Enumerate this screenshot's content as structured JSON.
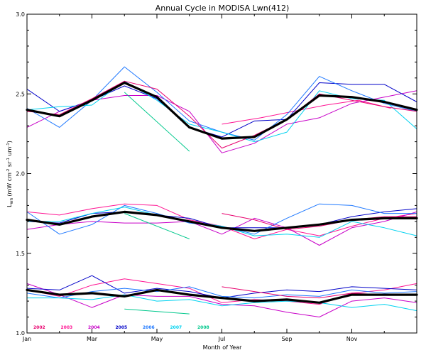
{
  "chart_data": {
    "type": "line",
    "title": "Annual Cycle in MODISA Lwn(412)",
    "xlabel": "Month of Year",
    "ylabel": "Lwn (mW cm⁻² sr⁻¹ um⁻¹)",
    "ylabel_parts": {
      "main": "L",
      "main_sub": "wn",
      "units": "(mW cm",
      "exp1": "-2",
      "mid1": " sr",
      "exp2": "-1",
      "mid2": " um",
      "exp3": "-1",
      "close": ")"
    },
    "xlim": [
      1,
      13
    ],
    "ylim": [
      1.0,
      3.0
    ],
    "x_ticks": [
      {
        "value": 1,
        "label": "Jan"
      },
      {
        "value": 3,
        "label": "Mar"
      },
      {
        "value": 5,
        "label": "May"
      },
      {
        "value": 7,
        "label": "Jul"
      },
      {
        "value": 9,
        "label": "Sep"
      },
      {
        "value": 11,
        "label": "Nov"
      }
    ],
    "y_ticks": [
      {
        "value": 1.0,
        "label": "1.0"
      },
      {
        "value": 1.5,
        "label": "1.5"
      },
      {
        "value": 2.0,
        "label": "2.0"
      },
      {
        "value": 2.5,
        "label": "2.5"
      },
      {
        "value": 3.0,
        "label": "3.0"
      }
    ],
    "grid": false,
    "legend_placement": "bottom-left inside plot",
    "legend": [
      {
        "label": "2002",
        "color": "#e8006e"
      },
      {
        "label": "2003",
        "color": "#ff1493"
      },
      {
        "label": "2004",
        "color": "#c800c8"
      },
      {
        "label": "2005",
        "color": "#0000c8"
      },
      {
        "label": "2006",
        "color": "#1e78ff"
      },
      {
        "label": "2007",
        "color": "#00d2f0"
      },
      {
        "label": "2008",
        "color": "#00c88c"
      }
    ],
    "mean_line": {
      "color": "#000000"
    },
    "panels": [
      {
        "id": "upper",
        "series": [
          {
            "color": "#ff1493",
            "x": [
              7,
              8.2,
              9.2,
              10.2,
              11.2,
              12.2
            ],
            "y": [
              2.31,
              2.35,
              2.39,
              2.43,
              2.46,
              2.41
            ]
          },
          {
            "color": "#c800c8",
            "x": [
              1,
              2,
              3,
              4,
              5,
              6,
              7,
              8,
              9,
              10,
              11,
              12,
              13
            ],
            "y": [
              2.29,
              2.39,
              2.46,
              2.49,
              2.49,
              2.39,
              2.13,
              2.19,
              2.31,
              2.35,
              2.44,
              2.48,
              2.52
            ]
          },
          {
            "color": "#0000c8",
            "x": [
              1,
              2,
              3,
              4,
              5,
              6,
              7,
              8,
              9,
              10,
              11,
              12,
              13
            ],
            "y": [
              2.53,
              2.39,
              2.46,
              2.55,
              2.47,
              2.29,
              2.23,
              2.33,
              2.34,
              2.57,
              2.56,
              2.56,
              2.45
            ]
          },
          {
            "color": "#1e78ff",
            "x": [
              1,
              2,
              3,
              4,
              5,
              6,
              7,
              8,
              9,
              10,
              11,
              12,
              13
            ],
            "y": [
              2.41,
              2.29,
              2.46,
              2.67,
              2.51,
              2.33,
              2.26,
              2.21,
              2.37,
              2.61,
              2.52,
              2.44,
              2.39
            ]
          },
          {
            "color": "#00d2f0",
            "x": [
              1,
              2,
              3,
              4,
              5,
              6,
              7,
              8,
              9,
              10,
              11,
              12,
              13
            ],
            "y": [
              2.4,
              2.42,
              2.43,
              2.58,
              2.46,
              2.31,
              2.26,
              2.2,
              2.26,
              2.52,
              2.47,
              2.46,
              2.28
            ]
          },
          {
            "color": "#00c88c",
            "x": [
              4,
              6
            ],
            "y": [
              2.51,
              2.14
            ]
          },
          {
            "color": "#e8006e",
            "x": [
              1,
              2,
              3,
              4,
              5,
              6,
              7,
              8,
              9,
              10,
              11,
              12,
              13
            ],
            "y": [
              2.39,
              2.37,
              2.47,
              2.58,
              2.53,
              2.36,
              2.16,
              2.24,
              2.34,
              2.5,
              2.46,
              2.42,
              2.39
            ]
          }
        ],
        "mean": {
          "x": [
            1,
            2,
            3,
            4,
            5,
            6,
            7,
            8,
            9,
            10,
            11,
            12,
            13
          ],
          "y": [
            2.4,
            2.36,
            2.46,
            2.57,
            2.48,
            2.29,
            2.22,
            2.23,
            2.34,
            2.49,
            2.48,
            2.45,
            2.4
          ]
        }
      },
      {
        "id": "middle",
        "series": [
          {
            "color": "#ff1493",
            "x": [
              1,
              2,
              3,
              4,
              5,
              6,
              7,
              8,
              9,
              10,
              11,
              12,
              13
            ],
            "y": [
              1.76,
              1.74,
              1.78,
              1.81,
              1.8,
              1.71,
              1.67,
              1.59,
              1.65,
              1.61,
              1.67,
              1.72,
              1.75
            ]
          },
          {
            "color": "#c800c8",
            "x": [
              1,
              2,
              3,
              4,
              5,
              6,
              7,
              8,
              9,
              10,
              11,
              12,
              13
            ],
            "y": [
              1.65,
              1.68,
              1.7,
              1.69,
              1.69,
              1.7,
              1.62,
              1.72,
              1.66,
              1.55,
              1.66,
              1.7,
              1.76
            ]
          },
          {
            "color": "#0000c8",
            "x": [
              1,
              2,
              3,
              4,
              5,
              6,
              7,
              8,
              9,
              10,
              11,
              12,
              13
            ],
            "y": [
              1.7,
              1.69,
              1.75,
              1.76,
              1.74,
              1.72,
              1.66,
              1.66,
              1.66,
              1.68,
              1.73,
              1.76,
              1.78
            ]
          },
          {
            "color": "#1e78ff",
            "x": [
              1,
              2,
              3,
              4,
              5,
              6,
              7,
              8,
              9,
              10,
              11,
              12,
              13
            ],
            "y": [
              1.76,
              1.62,
              1.68,
              1.8,
              1.75,
              1.69,
              1.67,
              1.62,
              1.72,
              1.81,
              1.8,
              1.75,
              1.75
            ]
          },
          {
            "color": "#00d2f0",
            "x": [
              1,
              2,
              3,
              4,
              5,
              6,
              7,
              8,
              9,
              10,
              11,
              12,
              13
            ],
            "y": [
              1.7,
              1.7,
              1.75,
              1.79,
              1.74,
              1.7,
              1.67,
              1.61,
              1.62,
              1.6,
              1.7,
              1.66,
              1.61
            ]
          },
          {
            "color": "#00c88c",
            "x": [
              4,
              6
            ],
            "y": [
              1.75,
              1.59
            ]
          },
          {
            "color": "#e8006e",
            "x": [
              7,
              8,
              9,
              10,
              11,
              12,
              13
            ],
            "y": [
              1.75,
              1.71,
              1.65,
              1.67,
              1.71,
              1.73,
              1.73
            ]
          }
        ],
        "mean": {
          "x": [
            1,
            2,
            3,
            4,
            5,
            6,
            7,
            8,
            9,
            10,
            11,
            12,
            13
          ],
          "y": [
            1.71,
            1.68,
            1.73,
            1.76,
            1.74,
            1.7,
            1.66,
            1.64,
            1.66,
            1.68,
            1.71,
            1.72,
            1.72
          ]
        }
      },
      {
        "id": "lower",
        "series": [
          {
            "color": "#ff1493",
            "x": [
              1,
              2,
              3,
              4,
              5,
              6,
              7,
              8,
              9,
              10,
              11,
              12,
              13
            ],
            "y": [
              1.27,
              1.23,
              1.3,
              1.34,
              1.31,
              1.28,
              1.19,
              1.21,
              1.2,
              1.18,
              1.25,
              1.27,
              1.31
            ]
          },
          {
            "color": "#c800c8",
            "x": [
              1,
              2,
              3,
              4,
              5,
              6,
              7,
              8,
              9,
              10,
              11,
              12,
              13
            ],
            "y": [
              1.31,
              1.24,
              1.16,
              1.24,
              1.23,
              1.23,
              1.18,
              1.17,
              1.13,
              1.1,
              1.2,
              1.22,
              1.19
            ]
          },
          {
            "color": "#0000c8",
            "x": [
              1,
              2,
              3,
              4,
              5,
              6,
              7,
              8,
              9,
              10,
              11,
              12,
              13
            ],
            "y": [
              1.28,
              1.27,
              1.36,
              1.25,
              1.28,
              1.26,
              1.22,
              1.25,
              1.27,
              1.26,
              1.29,
              1.28,
              1.27
            ]
          },
          {
            "color": "#1e78ff",
            "x": [
              1,
              2,
              3,
              4,
              5,
              6,
              7,
              8,
              9,
              10,
              11,
              12,
              13
            ],
            "y": [
              1.25,
              1.22,
              1.26,
              1.28,
              1.26,
              1.29,
              1.23,
              1.22,
              1.24,
              1.23,
              1.27,
              1.25,
              1.26
            ]
          },
          {
            "color": "#00d2f0",
            "x": [
              1,
              2,
              3,
              4,
              5,
              6,
              7,
              8,
              9,
              10,
              11,
              12,
              13
            ],
            "y": [
              1.22,
              1.22,
              1.21,
              1.24,
              1.2,
              1.21,
              1.17,
              1.19,
              1.2,
              1.19,
              1.16,
              1.18,
              1.14
            ]
          },
          {
            "color": "#00c88c",
            "x": [
              4,
              6
            ],
            "y": [
              1.15,
              1.12
            ]
          },
          {
            "color": "#e8006e",
            "x": [
              7,
              8,
              9,
              10,
              11,
              12,
              13
            ],
            "y": [
              1.29,
              1.26,
              1.23,
              1.22,
              1.25,
              1.24,
              1.24
            ]
          }
        ],
        "mean": {
          "x": [
            1,
            2,
            3,
            4,
            5,
            6,
            7,
            8,
            9,
            10,
            11,
            12,
            13
          ],
          "y": [
            1.27,
            1.24,
            1.25,
            1.23,
            1.27,
            1.24,
            1.22,
            1.2,
            1.21,
            1.19,
            1.24,
            1.24,
            1.24
          ]
        }
      }
    ]
  }
}
